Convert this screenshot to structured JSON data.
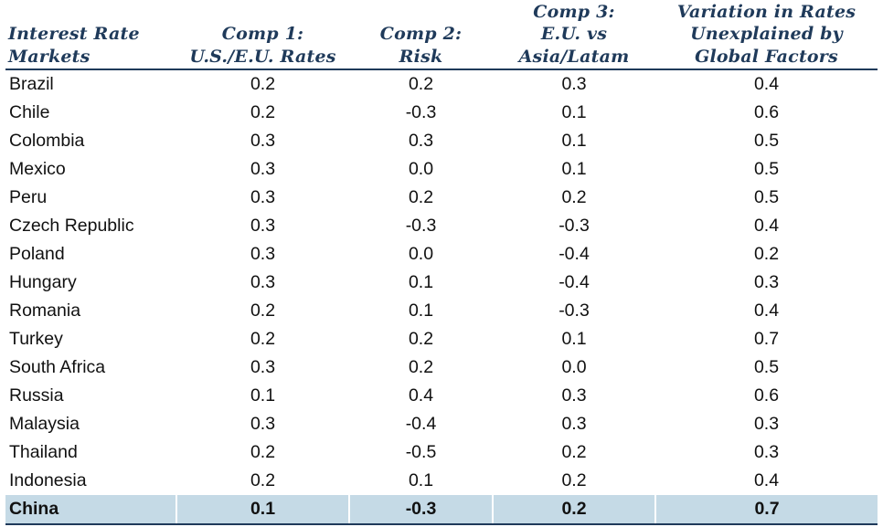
{
  "chart_data": {
    "type": "table",
    "columns": [
      {
        "lines": [
          "Interest Rate",
          "Markets"
        ]
      },
      {
        "lines": [
          "Comp 1:",
          "U.S./E.U. Rates"
        ]
      },
      {
        "lines": [
          "Comp 2:",
          "Risk"
        ]
      },
      {
        "lines": [
          "Comp 3:",
          "E.U. vs",
          "Asia/Latam"
        ]
      },
      {
        "lines": [
          "Variation in Rates",
          "Unexplained by",
          "Global Factors"
        ]
      }
    ],
    "rows": [
      {
        "market": "Brazil",
        "values": [
          "0.2",
          "0.2",
          "0.3",
          "0.4"
        ]
      },
      {
        "market": "Chile",
        "values": [
          "0.2",
          "-0.3",
          "0.1",
          "0.6"
        ]
      },
      {
        "market": "Colombia",
        "values": [
          "0.3",
          "0.3",
          "0.1",
          "0.5"
        ]
      },
      {
        "market": "Mexico",
        "values": [
          "0.3",
          "0.0",
          "0.1",
          "0.5"
        ]
      },
      {
        "market": "Peru",
        "values": [
          "0.3",
          "0.2",
          "0.2",
          "0.5"
        ]
      },
      {
        "market": "Czech Republic",
        "values": [
          "0.3",
          "-0.3",
          "-0.3",
          "0.4"
        ]
      },
      {
        "market": "Poland",
        "values": [
          "0.3",
          "0.0",
          "-0.4",
          "0.2"
        ]
      },
      {
        "market": "Hungary",
        "values": [
          "0.3",
          "0.1",
          "-0.4",
          "0.3"
        ]
      },
      {
        "market": "Romania",
        "values": [
          "0.2",
          "0.1",
          "-0.3",
          "0.4"
        ]
      },
      {
        "market": "Turkey",
        "values": [
          "0.2",
          "0.2",
          "0.1",
          "0.7"
        ]
      },
      {
        "market": "South Africa",
        "values": [
          "0.3",
          "0.2",
          "0.0",
          "0.5"
        ]
      },
      {
        "market": "Russia",
        "values": [
          "0.1",
          "0.4",
          "0.3",
          "0.6"
        ]
      },
      {
        "market": "Malaysia",
        "values": [
          "0.3",
          "-0.4",
          "0.3",
          "0.3"
        ]
      },
      {
        "market": "Thailand",
        "values": [
          "0.2",
          "-0.5",
          "0.2",
          "0.3"
        ]
      },
      {
        "market": "Indonesia",
        "values": [
          "0.2",
          "0.1",
          "0.2",
          "0.4"
        ]
      },
      {
        "market": "China",
        "values": [
          "0.1",
          "-0.3",
          "0.2",
          "0.7"
        ],
        "highlight": true
      }
    ]
  },
  "colors": {
    "header_text": "#1f3a5a",
    "highlight_row": "#c5dae6",
    "rule": "#1f3a5a"
  }
}
